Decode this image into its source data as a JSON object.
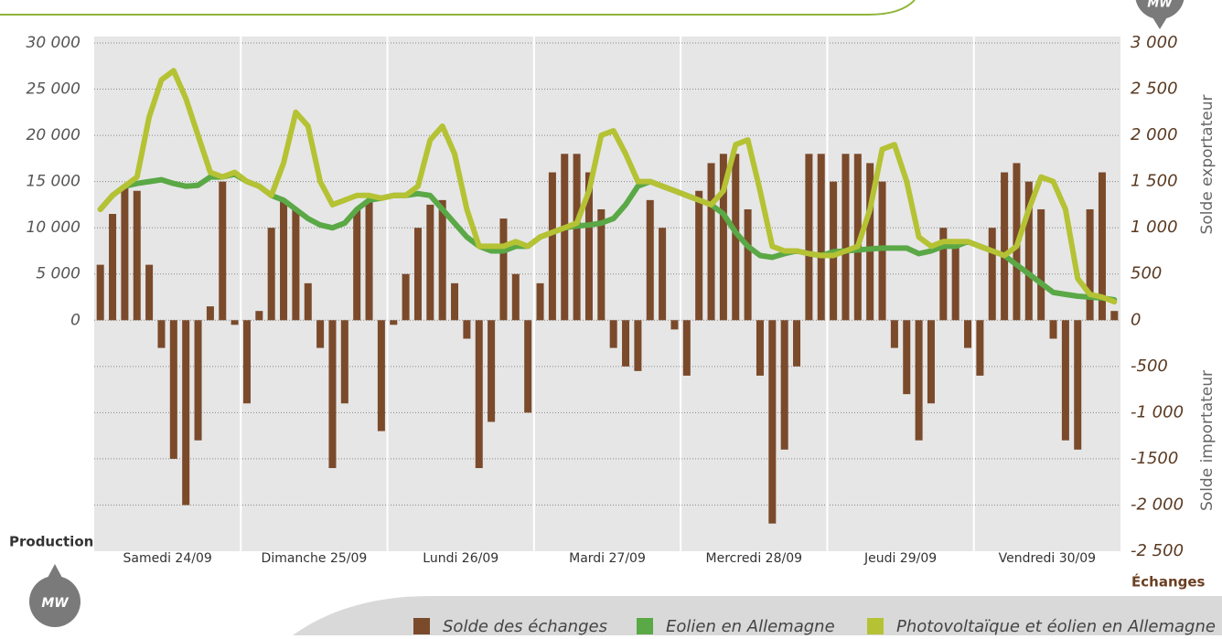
{
  "chart_data": {
    "type": "bar",
    "days": [
      "Samedi 24/09",
      "Dimanche 25/09",
      "Lundi 26/09",
      "Mardi 27/09",
      "Mercredi 28/09",
      "Jeudi 29/09",
      "Vendredi 30/09"
    ],
    "y_label": "Production",
    "y_unit": "MW",
    "y2_label": "Échanges",
    "y2_unit": "MW",
    "y2_upper_label": "Solde exportateur",
    "y2_lower_label": "Solde importateur",
    "ylim": [
      -25000,
      30000
    ],
    "yticks": [
      0,
      {
        "value": 5000,
        "label": "5 000"
      },
      {
        "value": 10000,
        "label": "10 000"
      },
      {
        "value": 15000,
        "label": "15 000"
      },
      {
        "value": 20000,
        "label": "20 000"
      },
      {
        "value": 25000,
        "label": "25 000"
      },
      {
        "value": 30000,
        "label": "30 000"
      }
    ],
    "y2lim": [
      -2500,
      3000
    ],
    "y2ticks": [
      {
        "value": 3000,
        "label": "3 000"
      },
      {
        "value": 2500,
        "label": "2 500"
      },
      {
        "value": 2000,
        "label": "2 000"
      },
      {
        "value": 1500,
        "label": "1 500"
      },
      {
        "value": 1000,
        "label": "1 000"
      },
      500,
      0,
      -500,
      {
        "value": -1000,
        "label": "-1 000"
      },
      {
        "value": -1500,
        "label": "-1500"
      },
      {
        "value": -2000,
        "label": "-2 000"
      },
      {
        "value": -2500,
        "label": "-2 500"
      }
    ],
    "grid": true,
    "series": [
      {
        "name": "Solde des échanges",
        "type": "bar",
        "axis": "y2",
        "color": "#7a4a2b",
        "values": [
          600,
          1150,
          1450,
          1400,
          600,
          -300,
          -1500,
          -2000,
          -1300,
          150,
          1500,
          -50,
          -900,
          100,
          1000,
          1300,
          1200,
          400,
          -300,
          -1600,
          -900,
          1200,
          1300,
          -1200,
          -50,
          500,
          1000,
          1250,
          1300,
          400,
          -200,
          -1600,
          -1100,
          1100,
          500,
          -1000,
          400,
          1600,
          1800,
          1800,
          1600,
          1200,
          -300,
          -500,
          -550,
          1300,
          1000,
          -100,
          -600,
          1400,
          1700,
          1800,
          1800,
          1200,
          -600,
          -2200,
          -1400,
          -500,
          1800,
          1800,
          1500,
          1800,
          1800,
          1700,
          1500,
          -300,
          -800,
          -1300,
          -900,
          1000,
          800,
          -300,
          -600,
          1000,
          1600,
          1700,
          1500,
          1200,
          -200,
          -1300,
          -1400,
          1200,
          1600,
          100
        ]
      },
      {
        "name": "Eolien en Allemagne",
        "type": "line",
        "axis": "y",
        "color": "#5aa846",
        "values": [
          12000,
          13500,
          14500,
          14800,
          15000,
          15200,
          14800,
          14500,
          14600,
          15500,
          15500,
          15800,
          15000,
          14500,
          13500,
          13000,
          12000,
          11000,
          10300,
          10000,
          10500,
          12000,
          13000,
          13200,
          13500,
          13500,
          13700,
          13500,
          12000,
          10500,
          9000,
          8000,
          7500,
          7500,
          8000,
          8000,
          9000,
          9500,
          10000,
          10200,
          10300,
          10500,
          11000,
          12500,
          14500,
          15000,
          14500,
          14000,
          13500,
          13000,
          12500,
          11500,
          9500,
          8000,
          7000,
          6800,
          7200,
          7500,
          7200,
          7000,
          7400,
          7500,
          7600,
          7700,
          7800,
          7800,
          7800,
          7200,
          7500,
          8000,
          8000,
          8500,
          8000,
          7500,
          7000,
          6000,
          5000,
          4000,
          3000,
          2800,
          2600,
          2500,
          2400,
          2200
        ]
      },
      {
        "name": "Photovoltaïque et éolien en Allemagne",
        "type": "line",
        "axis": "y",
        "color": "#b5c234",
        "values": [
          12000,
          13500,
          14500,
          15500,
          22000,
          26000,
          27000,
          24000,
          20000,
          16000,
          15500,
          16000,
          15000,
          14500,
          13500,
          17000,
          22500,
          21000,
          15000,
          12500,
          13000,
          13500,
          13500,
          13200,
          13500,
          13500,
          14500,
          19500,
          21000,
          18000,
          12000,
          8000,
          8000,
          8000,
          8500,
          8000,
          9000,
          9500,
          10000,
          10500,
          14000,
          20000,
          20500,
          18000,
          15000,
          15000,
          14500,
          14000,
          13500,
          13000,
          12500,
          14000,
          19000,
          19500,
          14000,
          8000,
          7500,
          7500,
          7200,
          7000,
          7000,
          7500,
          8000,
          12000,
          18500,
          19000,
          15000,
          9000,
          8000,
          8500,
          8500,
          8500,
          8000,
          7500,
          7000,
          8000,
          12000,
          15500,
          15000,
          12000,
          4500,
          2800,
          2500,
          2000
        ]
      }
    ]
  }
}
